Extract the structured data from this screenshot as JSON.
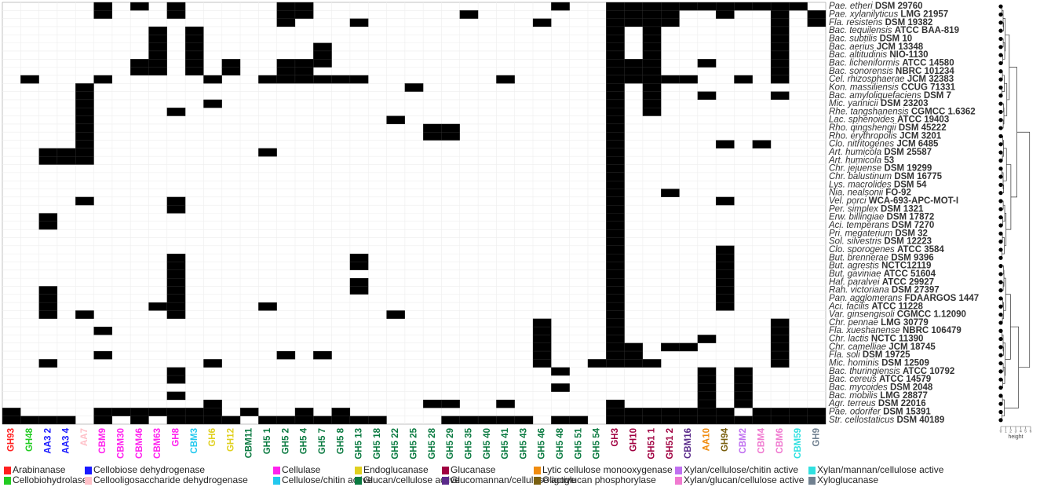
{
  "chart_data": {
    "type": "heatmap",
    "columns": [
      {
        "label": "GH93",
        "color": "#ff2020"
      },
      {
        "label": "GH48",
        "color": "#22cc22"
      },
      {
        "label": "AA3 2",
        "color": "#1a1aff"
      },
      {
        "label": "AA3 4",
        "color": "#1a1aff"
      },
      {
        "label": "AA7",
        "color": "#ffc0c8"
      },
      {
        "label": "CBM9",
        "color": "#ff22ee"
      },
      {
        "label": "CBM30",
        "color": "#ff22ee"
      },
      {
        "label": "CBM46",
        "color": "#ff22ee"
      },
      {
        "label": "CBM63",
        "color": "#ff22ee"
      },
      {
        "label": "GH8",
        "color": "#ff22ee"
      },
      {
        "label": "CBM3",
        "color": "#22c8ee"
      },
      {
        "label": "GH6",
        "color": "#e0d020"
      },
      {
        "label": "GH12",
        "color": "#e0d020"
      },
      {
        "label": "CBM11",
        "color": "#0a7a40"
      },
      {
        "label": "GH5 1",
        "color": "#0a7a40"
      },
      {
        "label": "GH5 2",
        "color": "#0a7a40"
      },
      {
        "label": "GH5 4",
        "color": "#0a7a40"
      },
      {
        "label": "GH5 7",
        "color": "#0a7a40"
      },
      {
        "label": "GH5 8",
        "color": "#0a7a40"
      },
      {
        "label": "GH5 13",
        "color": "#0a7a40"
      },
      {
        "label": "GH5 18",
        "color": "#0a7a40"
      },
      {
        "label": "GH5 22",
        "color": "#0a7a40"
      },
      {
        "label": "GH5 25",
        "color": "#0a7a40"
      },
      {
        "label": "GH5 28",
        "color": "#0a7a40"
      },
      {
        "label": "GH5 29",
        "color": "#0a7a40"
      },
      {
        "label": "GH5 35",
        "color": "#0a7a40"
      },
      {
        "label": "GH5 40",
        "color": "#0a7a40"
      },
      {
        "label": "GH5 41",
        "color": "#0a7a40"
      },
      {
        "label": "GH5 43",
        "color": "#0a7a40"
      },
      {
        "label": "GH5 46",
        "color": "#0a7a40"
      },
      {
        "label": "GH5 48",
        "color": "#0a7a40"
      },
      {
        "label": "GH5 51",
        "color": "#0a7a40"
      },
      {
        "label": "GH5 54",
        "color": "#0a7a40"
      },
      {
        "label": "GH3",
        "color": "#a00040"
      },
      {
        "label": "GH10",
        "color": "#a00040"
      },
      {
        "label": "GH51 1",
        "color": "#a00040"
      },
      {
        "label": "GH51 2",
        "color": "#a00040"
      },
      {
        "label": "CBM16",
        "color": "#5a2a8a"
      },
      {
        "label": "AA10",
        "color": "#f08c10"
      },
      {
        "label": "GH94",
        "color": "#7a6010"
      },
      {
        "label": "CBM2",
        "color": "#c070f0"
      },
      {
        "label": "CBM4",
        "color": "#f07ad0"
      },
      {
        "label": "CBM6",
        "color": "#f07ad0"
      },
      {
        "label": "CBM59",
        "color": "#30e0e0"
      },
      {
        "label": "GH9",
        "color": "#708090"
      }
    ],
    "rows": [
      {
        "species": "Pae. etheri",
        "strain": "DSM 29760"
      },
      {
        "species": "Pae. xylanilyticus",
        "strain": "LMG 21957"
      },
      {
        "species": "Fla. resistens",
        "strain": "DSM 19382"
      },
      {
        "species": "Bac. tequilensis",
        "strain": "ATCC BAA-819"
      },
      {
        "species": "Bac. subtilis",
        "strain": "DSM 10"
      },
      {
        "species": "Bac. aerius",
        "strain": "JCM 13348"
      },
      {
        "species": "Bac. altitudinis",
        "strain": "NIO-1130"
      },
      {
        "species": "Bac. licheniformis",
        "strain": "ATCC 14580"
      },
      {
        "species": "Bac. sonorensis",
        "strain": "NBRC 101234"
      },
      {
        "species": "Cel. rhizosphaerae",
        "strain": "JCM 32383"
      },
      {
        "species": "Kon. massiliensis",
        "strain": "CCUG 71331"
      },
      {
        "species": "Bac. amyloliquefaciens",
        "strain": "DSM 7"
      },
      {
        "species": "Mic. yannicii",
        "strain": "DSM 23203"
      },
      {
        "species": "Rhe. tangshanensis",
        "strain": "CGMCC 1.6362"
      },
      {
        "species": "Lac. sphenoides",
        "strain": "ATCC 19403"
      },
      {
        "species": "Rho. qingshengii",
        "strain": "DSM 45222"
      },
      {
        "species": "Rho. erythropolis",
        "strain": "JCM 3201"
      },
      {
        "species": "Clo. nitritogenes",
        "strain": "JCM 6485"
      },
      {
        "species": "Art. humicola",
        "strain": "DSM 25587"
      },
      {
        "species": "Art. humicola",
        "strain": "53"
      },
      {
        "species": "Chr. jejuense",
        "strain": "DSM 19299"
      },
      {
        "species": "Chr. balustinum",
        "strain": "DSM 16775"
      },
      {
        "species": "Lys. macrolides",
        "strain": "DSM 54"
      },
      {
        "species": "Nia. nealsonii",
        "strain": "FO-92"
      },
      {
        "species": "Vel. porci",
        "strain": "WCA-693-APC-MOT-I"
      },
      {
        "species": "Per. simplex",
        "strain": "DSM 1321"
      },
      {
        "species": "Erw. billingiae",
        "strain": "DSM 17872"
      },
      {
        "species": "Aci. temperans",
        "strain": "DSM 7270"
      },
      {
        "species": "Pri. megaterium",
        "strain": "DSM 32"
      },
      {
        "species": "Sol. silvestris",
        "strain": "DSM 12223"
      },
      {
        "species": "Clo. sporogenes",
        "strain": "ATCC 3584"
      },
      {
        "species": "But. brennerae",
        "strain": "DSM 9396"
      },
      {
        "species": "But. agrestis",
        "strain": "NCTC12119"
      },
      {
        "species": "But. gaviniae",
        "strain": "ATCC 51604"
      },
      {
        "species": "Haf. paralvei",
        "strain": "ATCC 29927"
      },
      {
        "species": "Rah. victoriana",
        "strain": "DSM 27397"
      },
      {
        "species": "Pan. agglomerans",
        "strain": "FDAARGOS 1447"
      },
      {
        "species": "Aci. facilis",
        "strain": "ATCC 11228"
      },
      {
        "species": "Var. ginsengisoli",
        "strain": "CGMCC 1.12090"
      },
      {
        "species": "Chr. pennae",
        "strain": "LMG 30779"
      },
      {
        "species": "Fla. xueshanense",
        "strain": "NBRC 106479"
      },
      {
        "species": "Chr. lactis",
        "strain": "NCTC 11390"
      },
      {
        "species": "Chr. camelliae",
        "strain": "JCM 18745"
      },
      {
        "species": "Fla. soli",
        "strain": "DSM 19725"
      },
      {
        "species": "Mic. hominis",
        "strain": "DSM 12509"
      },
      {
        "species": "Bac. thuringiensis",
        "strain": "ATCC 10792"
      },
      {
        "species": "Bac. cereus",
        "strain": "ATCC 14579"
      },
      {
        "species": "Bac. mycoides",
        "strain": "DSM 2048"
      },
      {
        "species": "Bac. mobilis",
        "strain": "LMG 28877"
      },
      {
        "species": "Agr. terreus",
        "strain": "DSM 22016"
      },
      {
        "species": "Pae. odorifer",
        "strain": "DSM 15391"
      },
      {
        "species": "Str. cellostaticus",
        "strain": "DSM 40189"
      }
    ],
    "present": [
      [
        5,
        7,
        9,
        15,
        16,
        30,
        33,
        34,
        35,
        36,
        37,
        38,
        39,
        40,
        41,
        42,
        43
      ],
      [
        5,
        9,
        15,
        16,
        25,
        33,
        34,
        35,
        36,
        39,
        42,
        44
      ],
      [
        15,
        19,
        29,
        33,
        34,
        35,
        36,
        42,
        44
      ],
      [
        8,
        10,
        33,
        35,
        42
      ],
      [
        8,
        10,
        33,
        35,
        42
      ],
      [
        8,
        10,
        17,
        33,
        35,
        42
      ],
      [
        8,
        10,
        17,
        33,
        35,
        42
      ],
      [
        7,
        8,
        10,
        12,
        15,
        16,
        17,
        33,
        34,
        35,
        38,
        42
      ],
      [
        7,
        8,
        10,
        12,
        15,
        16,
        33,
        34,
        35,
        42
      ],
      [
        1,
        5,
        11,
        14,
        15,
        16,
        17,
        18,
        19,
        27,
        33,
        34,
        35,
        36,
        37,
        40,
        42
      ],
      [
        4,
        22,
        33,
        35
      ],
      [
        4,
        33,
        35,
        38,
        42
      ],
      [
        4,
        11,
        33,
        35
      ],
      [
        4,
        9,
        33,
        35
      ],
      [
        4,
        21,
        33
      ],
      [
        4,
        23,
        24,
        33
      ],
      [
        4,
        23,
        24,
        33
      ],
      [
        4,
        33,
        39,
        41
      ],
      [
        2,
        3,
        4,
        14,
        33
      ],
      [
        2,
        3,
        4,
        33
      ],
      [
        33
      ],
      [
        33
      ],
      [
        33
      ],
      [
        33,
        36
      ],
      [
        4,
        9,
        33,
        39
      ],
      [
        9,
        33
      ],
      [
        2,
        33
      ],
      [
        2,
        33
      ],
      [
        33
      ],
      [
        33
      ],
      [
        33,
        39
      ],
      [
        9,
        19,
        33,
        39
      ],
      [
        9,
        19,
        33,
        39
      ],
      [
        9,
        33,
        39
      ],
      [
        9,
        19,
        33,
        39
      ],
      [
        2,
        9,
        19,
        33,
        39
      ],
      [
        2,
        9,
        33,
        39
      ],
      [
        2,
        8,
        9,
        14,
        33,
        39
      ],
      [
        2,
        4,
        9,
        21,
        33
      ],
      [
        29,
        33,
        42
      ],
      [
        5,
        29,
        33,
        42
      ],
      [
        29,
        33,
        38,
        42
      ],
      [
        29,
        33,
        34,
        36,
        37,
        42
      ],
      [
        5,
        15,
        17,
        29,
        33,
        34,
        42
      ],
      [
        2,
        11,
        29,
        32,
        33,
        34,
        35,
        42
      ],
      [
        9,
        30,
        38,
        40
      ],
      [
        9,
        38,
        40
      ],
      [
        30,
        38,
        40
      ],
      [
        9,
        38,
        40
      ],
      [
        11,
        23,
        24,
        27,
        33,
        38,
        40
      ],
      [
        0,
        5,
        6,
        7,
        8,
        9,
        10,
        11,
        13,
        16,
        18,
        33,
        34,
        35,
        36,
        37,
        38,
        39,
        41,
        42,
        43,
        44
      ],
      [
        0,
        1,
        2,
        3,
        5,
        7,
        9,
        10,
        11,
        12,
        14,
        15,
        16,
        17,
        18,
        19,
        20,
        24,
        25,
        26,
        27,
        28,
        30,
        31,
        33,
        34,
        35,
        36,
        37,
        38,
        39,
        40,
        41,
        42,
        43,
        44
      ]
    ],
    "fill_color": "#000000",
    "dendrogram": {
      "xlabel": "height",
      "xticks": [
        0,
        1,
        2,
        3,
        4,
        5,
        6
      ],
      "xlim": [
        0,
        6
      ]
    },
    "legend": [
      {
        "name": "Arabinanase",
        "color": "#ff2020"
      },
      {
        "name": "Cellobiose dehydrogenase",
        "color": "#1a1aff"
      },
      {
        "name": "Cellulase",
        "color": "#ff22ee"
      },
      {
        "name": "Endoglucanase",
        "color": "#e0d020"
      },
      {
        "name": "Glucanase",
        "color": "#a00040"
      },
      {
        "name": "Lytic cellulose monooxygenase",
        "color": "#f08c10"
      },
      {
        "name": "Xylan/cellulose/chitin active",
        "color": "#c070f0"
      },
      {
        "name": "Xylan/mannan/cellulose active",
        "color": "#30e0e0"
      },
      {
        "name": "Cellobiohydrolase",
        "color": "#22cc22"
      },
      {
        "name": "Cellooligosaccharide dehydrogenase",
        "color": "#ffc0c8"
      },
      {
        "name": "Cellulose/chitin active",
        "color": "#22c8ee"
      },
      {
        "name": "Glucan/cellulose active",
        "color": "#0a7a40"
      },
      {
        "name": "Glucomannan/cellulose active",
        "color": "#5a2a8a"
      },
      {
        "name": "Oligoglucan phosphorylase",
        "color": "#7a6010"
      },
      {
        "name": "Xylan/glucan/cellulose active",
        "color": "#f07ad0"
      },
      {
        "name": "Xyloglucanase",
        "color": "#708090"
      }
    ]
  }
}
